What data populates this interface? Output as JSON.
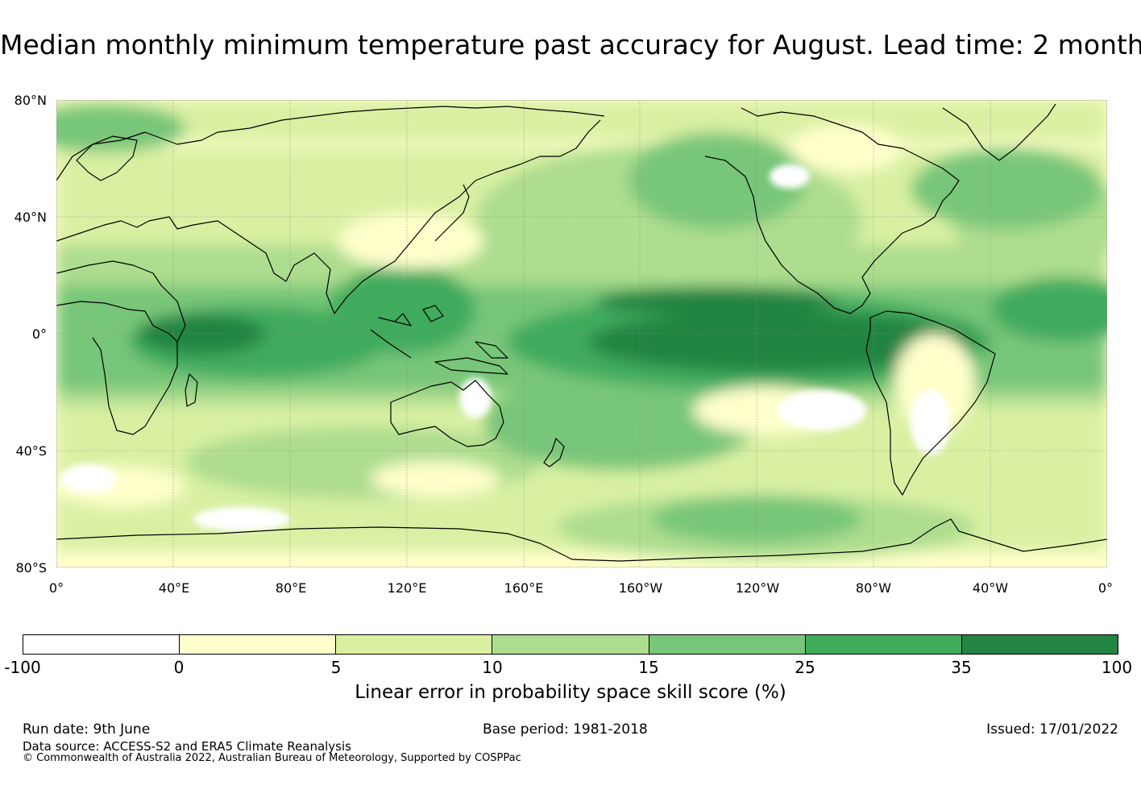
{
  "title": "Median monthly minimum temperature past accuracy for August. Lead time: 2 month",
  "map": {
    "lat_labels": [
      "80°N",
      "40°N",
      "0°",
      "40°S",
      "80°S"
    ],
    "lon_labels": [
      "0°",
      "40°E",
      "80°E",
      "120°E",
      "160°E",
      "160°W",
      "120°W",
      "80°W",
      "40°W",
      "0°"
    ],
    "projection": "equirectangular, 0° to 360° longitude, 80°S to 80°N",
    "gridlines": true,
    "coastlines": true
  },
  "colorbar": {
    "ticks": [
      "-100",
      "0",
      "5",
      "10",
      "15",
      "25",
      "35",
      "100"
    ],
    "colors": [
      "#ffffff",
      "#ffffcc",
      "#d9f0a3",
      "#addd8e",
      "#78c679",
      "#41ab5d",
      "#238443"
    ],
    "label": "Linear error in probability space skill score (%)"
  },
  "footer": {
    "run_date": "Run date: 9th June",
    "base_period": "Base period: 1981-2018",
    "issued": "Issued: 17/01/2022",
    "data_source": "Data source: ACCESS-S2 and ERA5 Climate Reanalysis",
    "copyright": "© Commonwealth of Australia 2022, Australian Bureau of Meteorology, Supported by COSPPac"
  }
}
